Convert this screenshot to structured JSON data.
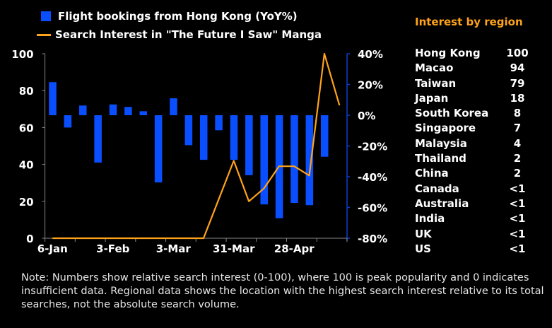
{
  "chart_data": {
    "type": "bar+line",
    "legend": [
      "Flight bookings from Hong Kong (YoY%)",
      "Search Interest in \"The Future I Saw\" Manga"
    ],
    "legend_placement": "top-left",
    "x_tick_labels": [
      "6-Jan",
      "3-Feb",
      "3-Mar",
      "31-Mar",
      "28-Apr"
    ],
    "left_axis": {
      "ticks": [
        "0",
        "20",
        "40",
        "60",
        "80",
        "100"
      ],
      "range": [
        0,
        100
      ]
    },
    "right_axis": {
      "ticks": [
        "-80%",
        "-60%",
        "-40%",
        "-20%",
        "0%",
        "20%",
        "40%"
      ],
      "range": [
        -80,
        40
      ]
    },
    "series": [
      {
        "name": "Flight bookings from Hong Kong (YoY%)",
        "type": "bar",
        "axis": "right",
        "color": "#0a4fff",
        "values": [
          21.5,
          -8,
          6.3,
          -30.8,
          7,
          5.4,
          2.6,
          -43.7,
          11,
          -19.5,
          -29,
          -9.8,
          -29,
          -39,
          -58,
          -67,
          -57,
          -58.5,
          -27
        ]
      },
      {
        "name": "Search Interest in \"The Future I Saw\" Manga",
        "type": "line",
        "axis": "left",
        "color": "#ffa31a",
        "values": [
          0,
          0,
          0,
          0,
          0,
          0,
          0,
          0,
          0,
          0,
          0,
          21,
          42,
          20,
          27,
          39,
          39,
          34,
          100,
          72
        ]
      }
    ]
  },
  "region_panel": {
    "title": "Interest by region",
    "rows": [
      {
        "name": "Hong Kong",
        "value": "100"
      },
      {
        "name": "Macao",
        "value": "94"
      },
      {
        "name": "Taiwan",
        "value": "79"
      },
      {
        "name": "Japan",
        "value": "18"
      },
      {
        "name": "South Korea",
        "value": "8"
      },
      {
        "name": "Singapore",
        "value": "7"
      },
      {
        "name": "Malaysia",
        "value": "4"
      },
      {
        "name": "Thailand",
        "value": "2"
      },
      {
        "name": "China",
        "value": "2"
      },
      {
        "name": "Canada",
        "value": "<1"
      },
      {
        "name": "Australia",
        "value": "<1"
      },
      {
        "name": "India",
        "value": "<1"
      },
      {
        "name": "UK",
        "value": "<1"
      },
      {
        "name": "US",
        "value": "<1"
      }
    ]
  },
  "note": "Note: Numbers show relative search interest (0-100), where 100 is peak popularity and 0 indicates insufficient data. Regional data shows the location with the highest search interest relative to its total searches, not the absolute search volume."
}
